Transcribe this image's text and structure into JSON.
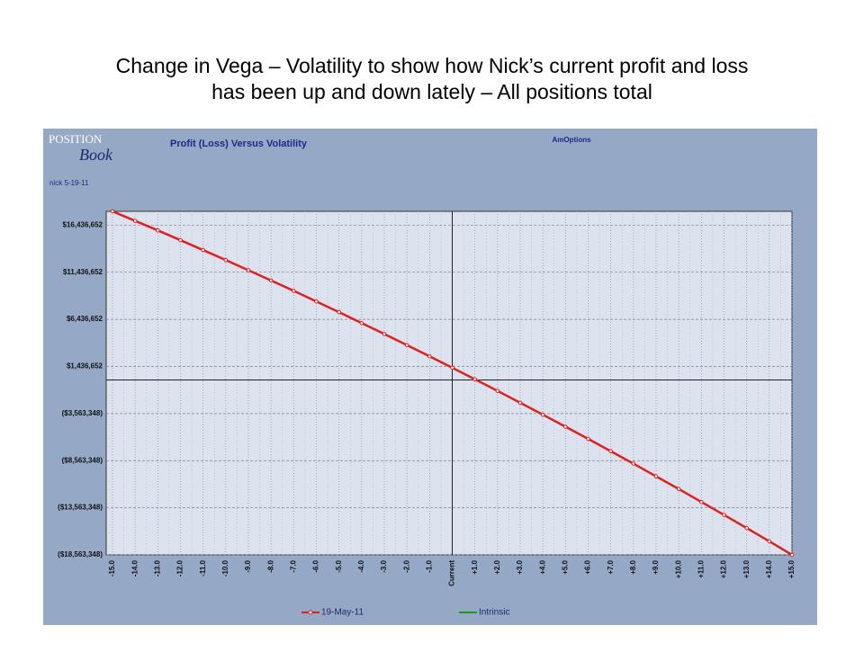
{
  "slide_title": [
    "Change in Vega – Volatility to show how Nick’s current profit and loss",
    "has been up and down lately – All positions total"
  ],
  "logo": [
    "POSITION",
    "Book"
  ],
  "chart_data": {
    "type": "line",
    "title": "Profit (Loss) Versus Volatility",
    "subtitle": "AmOptions",
    "annotation": "nick 5-19-11",
    "categories": [
      "-15.0",
      "-14.0",
      "-13.0",
      "-12.0",
      "-11.0",
      "-10.0",
      "-9.0",
      "-8.0",
      "-7.0",
      "-6.0",
      "-5.0",
      "-4.0",
      "-3.0",
      "-2.0",
      "-1.0",
      "Current",
      "+1.0",
      "+2.0",
      "+3.0",
      "+4.0",
      "+5.0",
      "+6.0",
      "+7.0",
      "+8.0",
      "+9.0",
      "+10.0",
      "+11.0",
      "+12.0",
      "+13.0",
      "+14.0",
      "+15.0"
    ],
    "series": [
      {
        "name": "19-May-11",
        "color": "#e02020",
        "values": [
          17900000,
          16890000,
          15880000,
          14840000,
          13790000,
          12730000,
          11650000,
          10560000,
          9460000,
          8330000,
          7200000,
          6040000,
          4880000,
          3700000,
          2510000,
          1300000,
          70000,
          -1160000,
          -2420000,
          -3680000,
          -4960000,
          -6250000,
          -7560000,
          -8880000,
          -10230000,
          -11570000,
          -12950000,
          -14320000,
          -15720000,
          -17130000,
          -18563348
        ]
      },
      {
        "name": "Intrinsic",
        "color": "#1a9a1a",
        "values": [
          null,
          null,
          null,
          null,
          null,
          null,
          null,
          null,
          null,
          null,
          null,
          null,
          null,
          null,
          null,
          null,
          null,
          null,
          null,
          null,
          null,
          null,
          null,
          null,
          null,
          null,
          null,
          null,
          null,
          null,
          null
        ]
      }
    ],
    "ylim": [
      -18563348,
      17900000
    ],
    "yticks": [
      {
        "value": 16436652,
        "label": "$16,436,652"
      },
      {
        "value": 11436652,
        "label": "$11,436,652"
      },
      {
        "value": 6436652,
        "label": "$6,436,652"
      },
      {
        "value": 1436652,
        "label": "$1,436,652"
      },
      {
        "value": -3563348,
        "label": "($3,563,348)"
      },
      {
        "value": -8563348,
        "label": "($8,563,348)"
      },
      {
        "value": -13563348,
        "label": "($13,563,348)"
      },
      {
        "value": -18563348,
        "label": "($18,563,348)"
      }
    ],
    "grid": true
  }
}
